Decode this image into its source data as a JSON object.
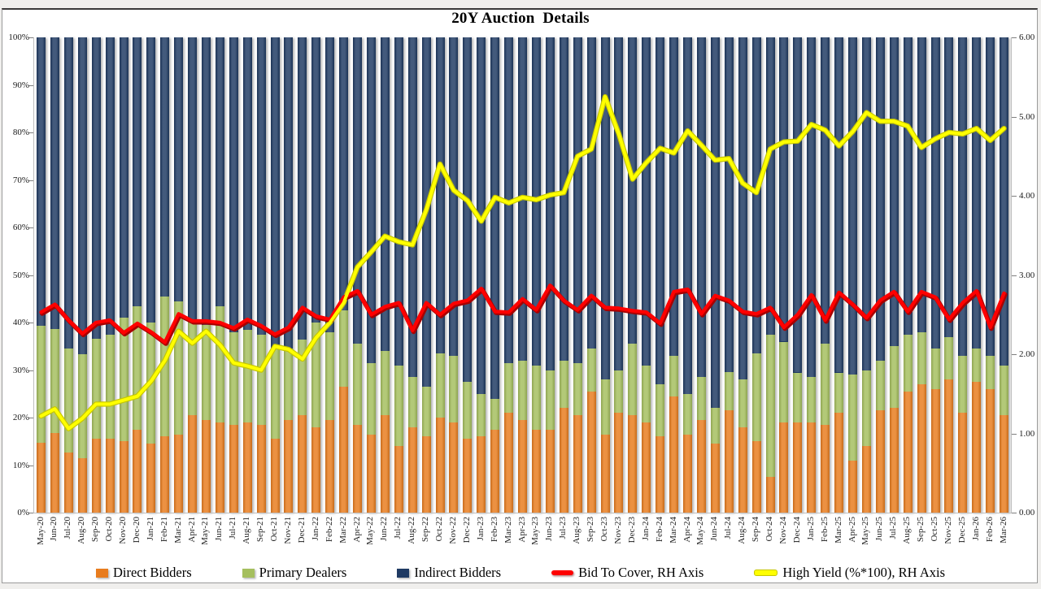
{
  "chart": {
    "title": "20Y Auction  Details",
    "left_axis_ticks": [
      "100%",
      "90%",
      "80%",
      "70%",
      "60%",
      "50%",
      "40%",
      "30%",
      "20%",
      "10%",
      "0%"
    ],
    "right_axis_ticks": [
      "6.00",
      "5.00",
      "4.00",
      "3.00",
      "2.00",
      "1.00",
      "0.00"
    ],
    "colors": {
      "direct": "#e87c1e",
      "primary": "#a5bf5e",
      "indirect": "#1f3a63",
      "bid_to_cover": "#fe0000",
      "high_yield": "#ffff00",
      "axis_gray": "#bfbfbf",
      "tick_gray": "#7f7f7f"
    }
  },
  "chart_data": {
    "type": "bar",
    "subtype": "stacked-100-with-lines",
    "title": "20Y Auction  Details",
    "left_axis": {
      "min": 0,
      "max": 100,
      "unit": "%"
    },
    "right_axis": {
      "min": 0,
      "max": 6,
      "step": 1
    },
    "legend_position": "bottom",
    "categories": [
      "May-20",
      "Jun-20",
      "Jul-20",
      "Aug-20",
      "Sep-20",
      "Oct-20",
      "Nov-20",
      "Dec-20",
      "Jan-21",
      "Feb-21",
      "Mar-21",
      "Apr-21",
      "May-21",
      "Jun-21",
      "Jul-21",
      "Aug-21",
      "Sep-21",
      "Oct-21",
      "Nov-21",
      "Dec-21",
      "Jan-22",
      "Feb-22",
      "Mar-22",
      "Apr-22",
      "May-22",
      "Jun-22",
      "Jul-22",
      "Aug-22",
      "Sep-22",
      "Oct-22",
      "Nov-22",
      "Dec-22",
      "Jan-23",
      "Feb-23",
      "Mar-23",
      "Apr-23",
      "May-23",
      "Jun-23",
      "Jul-23",
      "Aug-23",
      "Sep-23",
      "Oct-23",
      "Nov-23",
      "Dec-23",
      "Jan-24",
      "Feb-24",
      "Mar-24",
      "Apr-24",
      "May-24",
      "Jun-24",
      "Jul-24",
      "Aug-24",
      "Sep-24",
      "Oct-24",
      "Nov-24",
      "Dec-24",
      "Jan-25",
      "Feb-25",
      "Mar-25",
      "Apr-25",
      "May-25",
      "Jun-25",
      "Jul-25",
      "Aug-25",
      "Sep-25",
      "Oct-25",
      "Nov-25",
      "Dec-25",
      "Jan-26",
      "Feb-26",
      "Mar-26"
    ],
    "series": [
      {
        "name": "Direct Bidders",
        "type": "bar",
        "axis": "left",
        "color": "#e87c1e",
        "values": [
          14.7,
          16.7,
          12.6,
          11.5,
          15.6,
          15.5,
          15.0,
          17.5,
          14.5,
          16.0,
          16.5,
          20.5,
          19.5,
          19.0,
          18.5,
          19.0,
          18.5,
          15.5,
          19.5,
          20.5,
          18.0,
          19.5,
          26.5,
          18.5,
          16.5,
          20.5,
          14.0,
          18.0,
          16.0,
          20.0,
          19.0,
          15.5,
          16.0,
          17.5,
          21.0,
          19.5,
          17.5,
          17.5,
          22.0,
          20.5,
          25.5,
          16.5,
          21.0,
          20.5,
          19.0,
          16.0,
          24.5,
          16.5,
          19.5,
          14.5,
          21.5,
          18.0,
          15.0,
          7.5,
          19.0,
          19.0,
          19.0,
          18.5,
          21.0,
          11.0,
          14.0,
          21.5,
          22.0,
          25.5,
          27.0,
          26.0,
          28.0,
          21.0,
          27.5,
          26.0,
          20.5
        ]
      },
      {
        "name": "Primary Dealers",
        "type": "bar",
        "axis": "left",
        "color": "#a5bf5e",
        "values": [
          24.6,
          21.9,
          22.0,
          21.9,
          21.0,
          22.0,
          26.0,
          26.0,
          25.5,
          29.5,
          28.0,
          20.0,
          20.0,
          24.5,
          19.5,
          19.5,
          19.0,
          19.0,
          15.0,
          16.0,
          22.0,
          18.5,
          16.0,
          17.0,
          15.0,
          13.5,
          17.0,
          10.5,
          10.5,
          13.5,
          14.0,
          12.0,
          9.0,
          6.5,
          10.5,
          12.5,
          13.5,
          12.5,
          10.0,
          11.0,
          9.0,
          11.5,
          9.0,
          15.0,
          12.0,
          11.0,
          8.5,
          8.5,
          9.0,
          7.5,
          8.0,
          10.0,
          18.5,
          30.0,
          17.0,
          10.5,
          9.5,
          17.0,
          8.5,
          18.0,
          16.0,
          10.5,
          13.0,
          12.0,
          11.0,
          8.5,
          9.0,
          12.0,
          7.0,
          7.0,
          10.5
        ]
      },
      {
        "name": "Indirect Bidders",
        "type": "bar",
        "axis": "left",
        "color": "#1f3a63",
        "values": [
          60.7,
          61.4,
          65.4,
          66.6,
          63.4,
          62.5,
          59.0,
          56.5,
          60.0,
          54.5,
          55.5,
          59.5,
          60.5,
          56.5,
          62.0,
          61.5,
          62.5,
          65.5,
          65.5,
          63.5,
          60.0,
          62.0,
          57.5,
          64.5,
          68.5,
          66.0,
          69.0,
          71.5,
          73.5,
          66.5,
          67.0,
          72.5,
          75.0,
          76.0,
          68.5,
          68.0,
          69.0,
          70.0,
          68.0,
          68.5,
          65.5,
          72.0,
          70.0,
          64.5,
          69.0,
          73.0,
          67.0,
          75.0,
          71.5,
          78.0,
          70.5,
          72.0,
          66.5,
          62.5,
          64.0,
          70.5,
          71.5,
          64.5,
          70.5,
          71.0,
          70.0,
          68.0,
          65.0,
          62.5,
          62.0,
          65.5,
          63.0,
          67.0,
          65.5,
          67.0,
          69.0
        ]
      },
      {
        "name": "Bid To Cover, RH Axis",
        "type": "line",
        "axis": "right",
        "color": "#fe0000",
        "values": [
          2.53,
          2.63,
          2.43,
          2.26,
          2.4,
          2.43,
          2.27,
          2.39,
          2.28,
          2.15,
          2.51,
          2.42,
          2.42,
          2.4,
          2.33,
          2.44,
          2.36,
          2.25,
          2.34,
          2.59,
          2.48,
          2.44,
          2.72,
          2.8,
          2.5,
          2.6,
          2.65,
          2.3,
          2.65,
          2.5,
          2.64,
          2.68,
          2.83,
          2.54,
          2.53,
          2.7,
          2.56,
          2.87,
          2.68,
          2.56,
          2.74,
          2.59,
          2.58,
          2.55,
          2.53,
          2.39,
          2.79,
          2.82,
          2.51,
          2.74,
          2.68,
          2.54,
          2.51,
          2.59,
          2.34,
          2.5,
          2.75,
          2.43,
          2.78,
          2.63,
          2.46,
          2.68,
          2.79,
          2.54,
          2.79,
          2.72,
          2.44,
          2.65,
          2.8,
          2.34,
          2.77
        ]
      },
      {
        "name": "High Yield (%*100), RH Axis",
        "type": "line",
        "axis": "right",
        "color": "#ffff00",
        "values": [
          1.22,
          1.31,
          1.06,
          1.19,
          1.37,
          1.37,
          1.42,
          1.47,
          1.66,
          1.92,
          2.29,
          2.14,
          2.29,
          2.12,
          1.89,
          1.85,
          1.8,
          2.1,
          2.06,
          1.94,
          2.21,
          2.4,
          2.65,
          3.1,
          3.29,
          3.49,
          3.42,
          3.38,
          3.82,
          4.4,
          4.07,
          3.94,
          3.68,
          3.98,
          3.91,
          3.98,
          3.95,
          4.01,
          4.04,
          4.5,
          4.59,
          5.25,
          4.78,
          4.21,
          4.42,
          4.6,
          4.54,
          4.82,
          4.64,
          4.45,
          4.47,
          4.16,
          4.04,
          4.59,
          4.68,
          4.69,
          4.9,
          4.83,
          4.63,
          4.81,
          5.05,
          4.94,
          4.94,
          4.88,
          4.61,
          4.72,
          4.8,
          4.78,
          4.85,
          4.7,
          4.85
        ]
      }
    ]
  }
}
